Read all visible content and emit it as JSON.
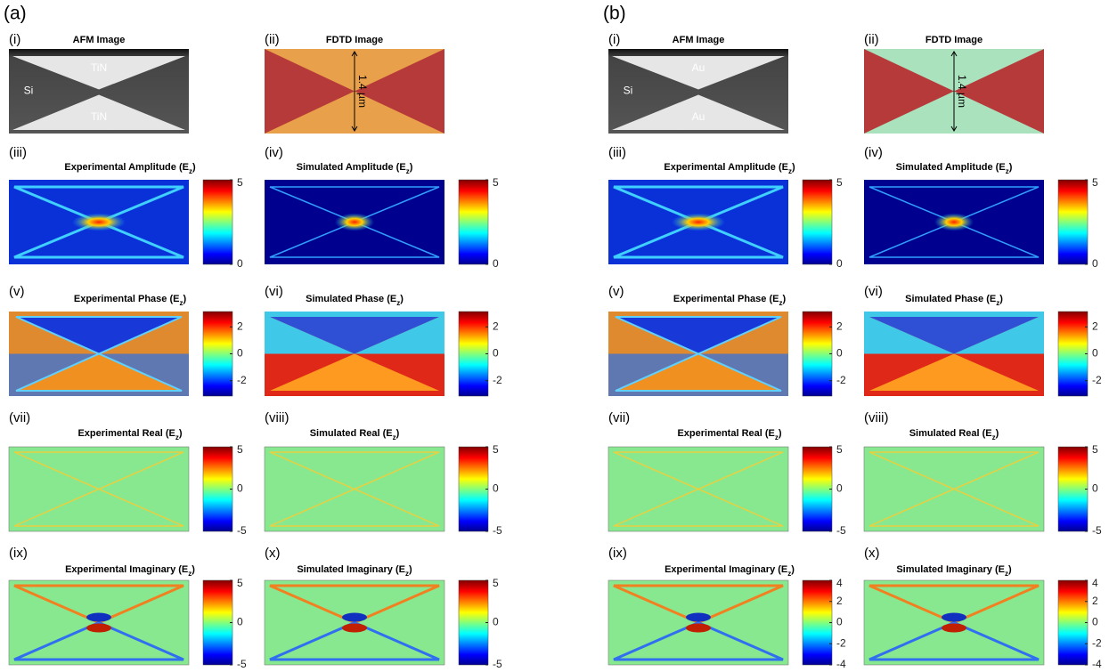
{
  "figure": {
    "groups": [
      {
        "label": "(a)",
        "panels": [
          {
            "label": "(i)",
            "title": "AFM Image",
            "image_labels": [
              "TiN",
              "Si",
              "TiN"
            ],
            "kind": "afm"
          },
          {
            "label": "(ii)",
            "title": "FDTD Image",
            "image_labels": [
              "1.4 µm"
            ],
            "kind": "fdtd"
          },
          {
            "label": "(iii)",
            "title": "Experimental Amplitude (E",
            "subscript": "z",
            "title_end": ")",
            "colorbar_ticks": [
              "5",
              "0"
            ],
            "kind": "amp-exp"
          },
          {
            "label": "(iv)",
            "title": "Simulated Amplitude (E",
            "subscript": "z",
            "title_end": ")",
            "colorbar_ticks": [
              "5",
              "0"
            ],
            "kind": "amp-sim"
          },
          {
            "label": "(v)",
            "title": "Experimental Phase (E",
            "subscript": "z",
            "title_end": ")",
            "colorbar_ticks": [
              "2",
              "0",
              "-2"
            ],
            "kind": "phase-exp"
          },
          {
            "label": "(vi)",
            "title": "Simulated Phase (E",
            "subscript": "z",
            "title_end": ")",
            "colorbar_ticks": [
              "2",
              "0",
              "-2"
            ],
            "kind": "phase-sim"
          },
          {
            "label": "(vii)",
            "title": "Experimental Real (E",
            "subscript": "z",
            "title_end": ")",
            "colorbar_ticks": [
              "5",
              "0",
              "-5"
            ],
            "kind": "real"
          },
          {
            "label": "(viii)",
            "title": "Simulated Real (E",
            "subscript": "z",
            "title_end": ")",
            "colorbar_ticks": [
              "5",
              "0",
              "-5"
            ],
            "kind": "real"
          },
          {
            "label": "(ix)",
            "title": "Experimental Imaginary (E",
            "subscript": "z",
            "title_end": ")",
            "colorbar_ticks": [
              "5",
              "0",
              "-5"
            ],
            "kind": "imag"
          },
          {
            "label": "(x)",
            "title": "Simulated Imaginary (E",
            "subscript": "z",
            "title_end": ")",
            "colorbar_ticks": [
              "5",
              "0",
              "-5"
            ],
            "kind": "imag"
          }
        ]
      },
      {
        "label": "(b)",
        "panels": [
          {
            "label": "(i)",
            "title": "AFM Image",
            "image_labels": [
              "Au",
              "Si",
              "Au"
            ],
            "kind": "afm"
          },
          {
            "label": "(ii)",
            "title": "FDTD Image",
            "image_labels": [
              "1.4 µm"
            ],
            "kind": "fdtd-b"
          },
          {
            "label": "(iii)",
            "title": "Experimental Amplitude (E",
            "subscript": "z",
            "title_end": ")",
            "colorbar_ticks": [
              "5",
              "0"
            ],
            "kind": "amp-exp"
          },
          {
            "label": "(iv)",
            "title": "Simulated Amplitude (E",
            "subscript": "z",
            "title_end": ")",
            "colorbar_ticks": [
              "5",
              "0"
            ],
            "kind": "amp-sim"
          },
          {
            "label": "(v)",
            "title": "Experimental Phase (E",
            "subscript": "z",
            "title_end": ")",
            "colorbar_ticks": [
              "2",
              "0",
              "-2"
            ],
            "kind": "phase-exp"
          },
          {
            "label": "(vi)",
            "title": "Simulated Phase (E",
            "subscript": "z",
            "title_end": ")",
            "colorbar_ticks": [
              "2",
              "0",
              "-2"
            ],
            "kind": "phase-sim"
          },
          {
            "label": "(vii)",
            "title": "Experimental Real (E",
            "subscript": "z",
            "title_end": ")",
            "colorbar_ticks": [
              "5",
              "0",
              "-5"
            ],
            "kind": "real"
          },
          {
            "label": "(viii)",
            "title": "Simulated Real (E",
            "subscript": "z",
            "title_end": ")",
            "colorbar_ticks": [
              "5",
              "0",
              "-5"
            ],
            "kind": "real"
          },
          {
            "label": "(ix)",
            "title": "Experimental Imaginary (E",
            "subscript": "z",
            "title_end": ")",
            "colorbar_ticks": [
              "4",
              "2",
              "0",
              "-2",
              "-4"
            ],
            "kind": "imag"
          },
          {
            "label": "(x)",
            "title": "Simulated Imaginary (E",
            "subscript": "z",
            "title_end": ")",
            "colorbar_ticks": [
              "4",
              "2",
              "0",
              "-2",
              "-4"
            ],
            "kind": "imag"
          }
        ]
      }
    ]
  }
}
